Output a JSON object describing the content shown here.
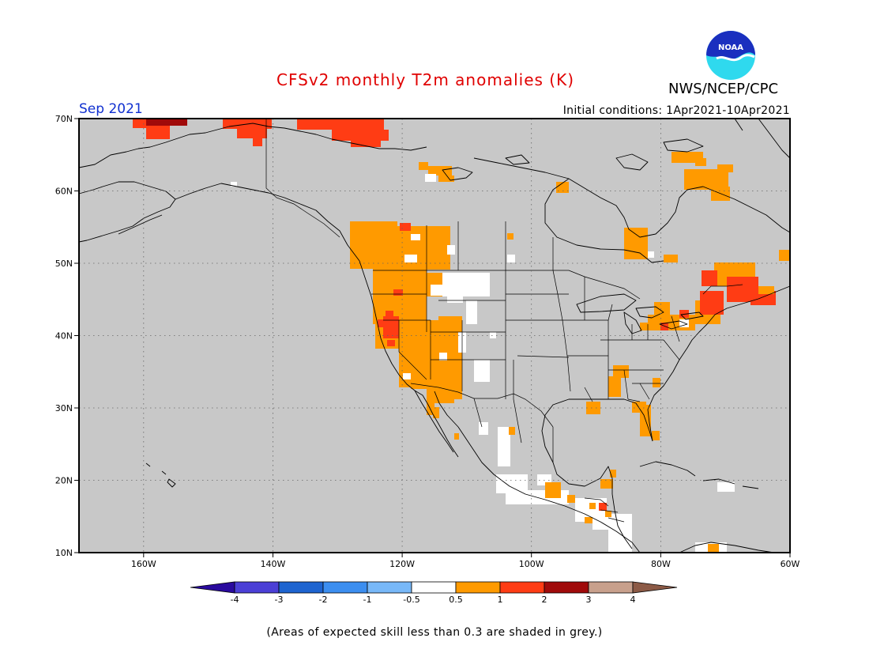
{
  "header": {
    "title": "CFSv2 monthly T2m anomalies (K)",
    "agency": "NWS/NCEP/CPC",
    "logo_text": "NOAA",
    "month": "Sep 2021",
    "initial_conditions": "Initial conditions: 1Apr2021-10Apr2021"
  },
  "map": {
    "lon_range": [
      -170,
      -60
    ],
    "lat_range": [
      10,
      70
    ],
    "lat_ticks": [
      {
        "value": 70,
        "label": "70N"
      },
      {
        "value": 60,
        "label": "60N"
      },
      {
        "value": 50,
        "label": "50N"
      },
      {
        "value": 40,
        "label": "40N"
      },
      {
        "value": 30,
        "label": "30N"
      },
      {
        "value": 20,
        "label": "20N"
      },
      {
        "value": 10,
        "label": "10N"
      }
    ],
    "lon_ticks": [
      {
        "value": -160,
        "label": "160W"
      },
      {
        "value": -140,
        "label": "140W"
      },
      {
        "value": -120,
        "label": "120W"
      },
      {
        "value": -100,
        "label": "100W"
      },
      {
        "value": -80,
        "label": "80W"
      },
      {
        "value": -60,
        "label": "60W"
      }
    ],
    "background_color": "#c8c8c8",
    "grid": true
  },
  "legend": {
    "colors": [
      "#2a0a9e",
      "#4b3fd6",
      "#1e64d0",
      "#3c8ef0",
      "#78b8f8",
      "#ffffff",
      "#ff9a00",
      "#ff3c14",
      "#a00a0a",
      "#c8a08c",
      "#8c5a46"
    ],
    "labels": [
      "-4",
      "-3",
      "-2",
      "-1",
      "-0.5",
      "0.5",
      "1",
      "2",
      "3",
      "4"
    ]
  },
  "footnote": "(Areas of expected skill less than 0.3 are shaded in grey.)",
  "chart_data": {
    "type": "heatmap",
    "variable": "T2m anomaly (K)",
    "regions": [
      {
        "lon": [
          -158,
          -155
        ],
        "lat": [
          69,
          70
        ],
        "category": "2 to 3"
      },
      {
        "lon": [
          -160,
          -154
        ],
        "lat": [
          68,
          70
        ],
        "category": "1 to 2"
      },
      {
        "lon": [
          -146,
          -137
        ],
        "lat": [
          67,
          70
        ],
        "category": "1 to 2"
      },
      {
        "lon": [
          -133,
          -118
        ],
        "lat": [
          67,
          70
        ],
        "category": "1 to 2"
      },
      {
        "lon": [
          -126,
          -118
        ],
        "lat": [
          56,
          58
        ],
        "category": "0.5 to 1"
      },
      {
        "lon": [
          -126,
          -114
        ],
        "lat": [
          50,
          56
        ],
        "category": "0.5 to 1"
      },
      {
        "lon": [
          -124,
          -115
        ],
        "lat": [
          31,
          44
        ],
        "category": "0.5 to 1"
      },
      {
        "lon": [
          -124,
          -121
        ],
        "lat": [
          39,
          42
        ],
        "category": "1 to 2"
      },
      {
        "lon": [
          -117,
          -111
        ],
        "lat": [
          30,
          40
        ],
        "category": "0.5 to 1"
      },
      {
        "lon": [
          -117,
          -110
        ],
        "lat": [
          47,
          50
        ],
        "category": "-0.5 to 0.5"
      },
      {
        "lon": [
          -112,
          -110
        ],
        "lat": [
          35,
          37
        ],
        "category": "-0.5 to 0.5"
      },
      {
        "lon": [
          -111,
          -109
        ],
        "lat": [
          20,
          24
        ],
        "category": "-0.5 to 0.5"
      },
      {
        "lon": [
          -104,
          -84
        ],
        "lat": [
          16,
          19
        ],
        "category": "-0.5 to 0.5"
      },
      {
        "lon": [
          -84,
          -80
        ],
        "lat": [
          11,
          15
        ],
        "category": "-0.5 to 0.5"
      },
      {
        "lon": [
          -96,
          -94
        ],
        "lat": [
          17,
          19
        ],
        "category": "0.5 to 1"
      },
      {
        "lon": [
          -88,
          -86
        ],
        "lat": [
          19,
          21
        ],
        "category": "0.5 to 1"
      },
      {
        "lon": [
          -88,
          -87
        ],
        "lat": [
          15,
          17
        ],
        "category": "1 to 2"
      },
      {
        "lon": [
          -75,
          -70
        ],
        "lat": [
          62,
          65
        ],
        "category": "0.5 to 1"
      },
      {
        "lon": [
          -79,
          -76
        ],
        "lat": [
          51,
          55
        ],
        "category": "0.5 to 1"
      },
      {
        "lon": [
          -72,
          -62
        ],
        "lat": [
          43,
          49
        ],
        "category": "0.5 to 1"
      },
      {
        "lon": [
          -73,
          -64
        ],
        "lat": [
          43,
          46
        ],
        "category": "1 to 2"
      },
      {
        "lon": [
          -79,
          -74
        ],
        "lat": [
          41,
          43
        ],
        "category": "0.5 to 1"
      },
      {
        "lon": [
          -88,
          -85
        ],
        "lat": [
          32,
          36
        ],
        "category": "0.5 to 1"
      },
      {
        "lon": [
          -82,
          -80
        ],
        "lat": [
          25,
          30
        ],
        "category": "0.5 to 1"
      },
      {
        "lon": [
          -91,
          -89
        ],
        "lat": [
          29,
          30
        ],
        "category": "0.5 to 1"
      },
      {
        "lon": [
          -73,
          -69
        ],
        "lat": [
          10,
          11
        ],
        "category": "0.5 to 1"
      }
    ]
  }
}
